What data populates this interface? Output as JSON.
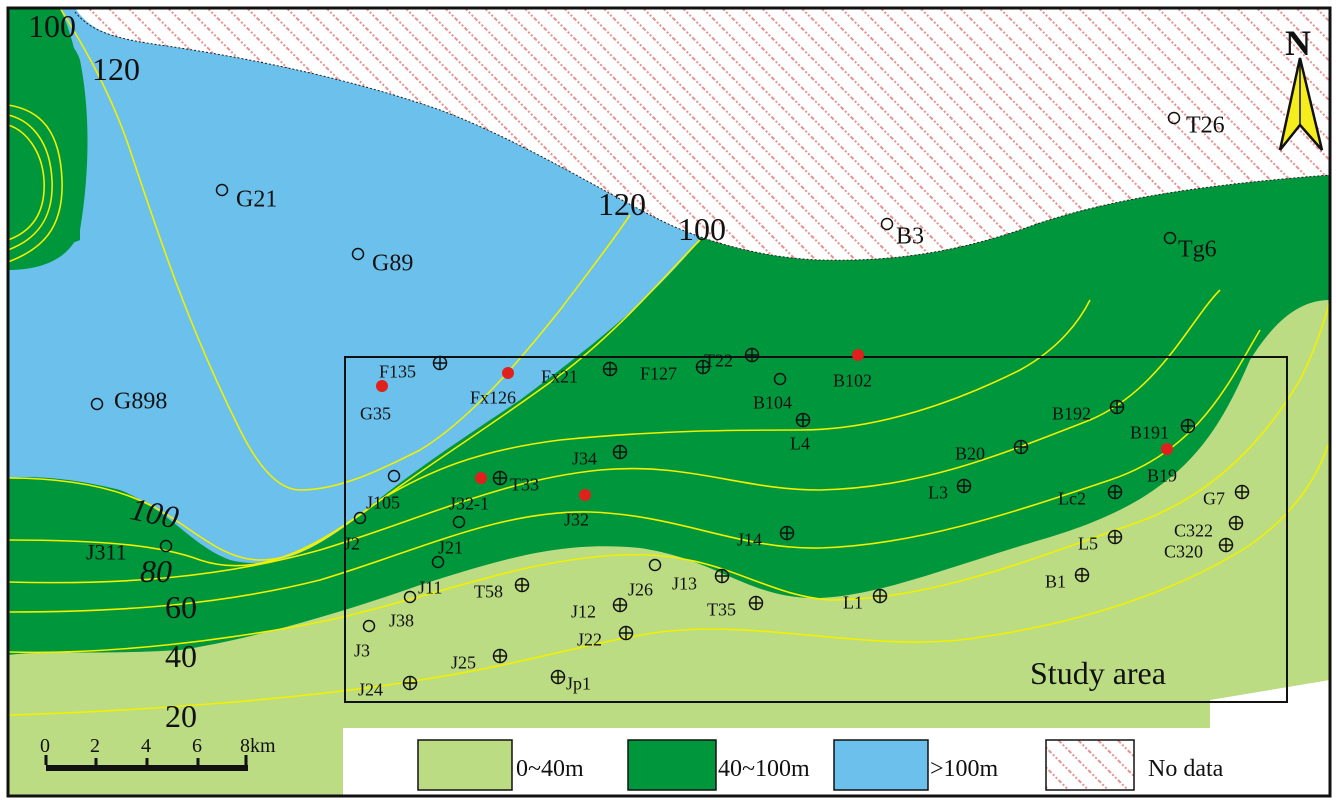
{
  "map": {
    "north_label": "N",
    "study_area_label": "Study area",
    "scale": {
      "ticks": [
        "0",
        "2",
        "4",
        "6",
        "8km"
      ]
    },
    "colors": {
      "thin": "#bcdc84",
      "medium": "#00963c",
      "thick": "#6cc0ec",
      "no_data_hatch": "#e89090",
      "contour": "#f0f000",
      "producing_well": "#e0201c"
    },
    "legend": [
      {
        "label": "0~40m",
        "fill": "thin"
      },
      {
        "label": "40~100m",
        "fill": "medium"
      },
      {
        "label": ">100m",
        "fill": "thick"
      },
      {
        "label": "No data",
        "fill": "hatch"
      }
    ],
    "contour_labels": [
      "100",
      "120",
      "120",
      "100",
      "100",
      "80",
      "60",
      "40",
      "20"
    ],
    "wells": [
      {
        "name": "T26",
        "sym": "o"
      },
      {
        "name": "G21",
        "sym": "o"
      },
      {
        "name": "B3",
        "sym": "o"
      },
      {
        "name": "Tg6",
        "sym": "o"
      },
      {
        "name": "G89",
        "sym": "o"
      },
      {
        "name": "G898",
        "sym": "o"
      },
      {
        "name": "F135",
        "sym": "plus"
      },
      {
        "name": "G35",
        "sym": "red"
      },
      {
        "name": "Fx126",
        "sym": "red"
      },
      {
        "name": "Fx21",
        "sym": "plus"
      },
      {
        "name": "F127",
        "sym": "plus"
      },
      {
        "name": "T22",
        "sym": "plus"
      },
      {
        "name": "B102",
        "sym": "red"
      },
      {
        "name": "B104",
        "sym": "o"
      },
      {
        "name": "L4",
        "sym": "plus"
      },
      {
        "name": "B192",
        "sym": "plus"
      },
      {
        "name": "B191",
        "sym": "plus"
      },
      {
        "name": "B20",
        "sym": "plus"
      },
      {
        "name": "B19",
        "sym": "red"
      },
      {
        "name": "J34",
        "sym": "plus"
      },
      {
        "name": "L3",
        "sym": "plus"
      },
      {
        "name": "Lc2",
        "sym": "plus"
      },
      {
        "name": "G7",
        "sym": "plus"
      },
      {
        "name": "J105",
        "sym": "o"
      },
      {
        "name": "J32-1",
        "sym": "red"
      },
      {
        "name": "T33",
        "sym": "plus"
      },
      {
        "name": "J32",
        "sym": "red"
      },
      {
        "name": "J2",
        "sym": "o"
      },
      {
        "name": "J21",
        "sym": "o"
      },
      {
        "name": "J14",
        "sym": "plus"
      },
      {
        "name": "C322",
        "sym": "plus"
      },
      {
        "name": "L5",
        "sym": "plus"
      },
      {
        "name": "C320",
        "sym": "plus"
      },
      {
        "name": "J311",
        "sym": "o"
      },
      {
        "name": "J11",
        "sym": "o"
      },
      {
        "name": "J26",
        "sym": "o"
      },
      {
        "name": "J13",
        "sym": "plus"
      },
      {
        "name": "T58",
        "sym": "plus"
      },
      {
        "name": "B1",
        "sym": "plus"
      },
      {
        "name": "J12",
        "sym": "plus"
      },
      {
        "name": "T35",
        "sym": "plus"
      },
      {
        "name": "L1",
        "sym": "plus"
      },
      {
        "name": "J38",
        "sym": "o"
      },
      {
        "name": "J3",
        "sym": "o"
      },
      {
        "name": "J22",
        "sym": "plus"
      },
      {
        "name": "J25",
        "sym": "plus"
      },
      {
        "name": "Jp1",
        "sym": "plus"
      },
      {
        "name": "J24",
        "sym": "plus"
      }
    ]
  }
}
